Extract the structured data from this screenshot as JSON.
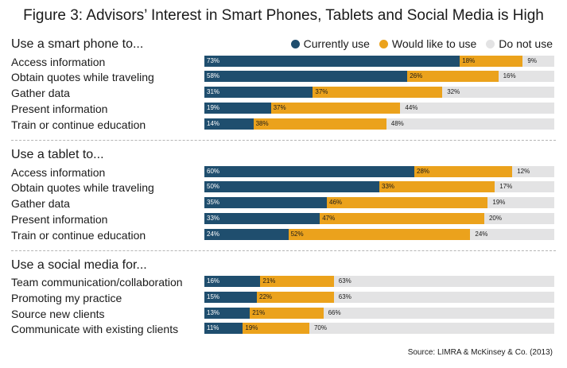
{
  "title": "Figure 3: Advisors’ Interest in Smart Phones, Tablets and Social Media is High",
  "legend": [
    {
      "label": "Currently use",
      "color": "#1f4e6e"
    },
    {
      "label": "Would like to use",
      "color": "#eba21c"
    },
    {
      "label": "Do not use",
      "color": "#e3e3e4"
    }
  ],
  "source": "Source: LIMRA & McKinsey & Co. (2013)",
  "chart_data": {
    "type": "bar",
    "orientation": "horizontal",
    "stacked": true,
    "units": "percent",
    "xlim": [
      0,
      100
    ],
    "series": [
      "Currently use",
      "Would like to use",
      "Do not use"
    ],
    "groups": [
      {
        "title": "Use a smart phone to...",
        "rows": [
          {
            "label": "Access information",
            "values": [
              73,
              18,
              9
            ]
          },
          {
            "label": "Obtain quotes while traveling",
            "values": [
              58,
              26,
              16
            ]
          },
          {
            "label": "Gather data",
            "values": [
              31,
              37,
              32
            ]
          },
          {
            "label": "Present information",
            "values": [
              19,
              37,
              44
            ]
          },
          {
            "label": "Train or continue education",
            "values": [
              14,
              38,
              48
            ]
          }
        ]
      },
      {
        "title": "Use a tablet to...",
        "rows": [
          {
            "label": "Access information",
            "values": [
              60,
              28,
              12
            ]
          },
          {
            "label": "Obtain quotes while traveling",
            "values": [
              50,
              33,
              17
            ]
          },
          {
            "label": "Gather data",
            "values": [
              35,
              46,
              19
            ]
          },
          {
            "label": "Present information",
            "values": [
              33,
              47,
              20
            ]
          },
          {
            "label": "Train or continue education",
            "values": [
              24,
              52,
              24
            ]
          }
        ]
      },
      {
        "title": "Use a social media for...",
        "rows": [
          {
            "label": "Team communication/collaboration",
            "values": [
              16,
              21,
              63
            ]
          },
          {
            "label": "Promoting my practice",
            "values": [
              15,
              22,
              63
            ]
          },
          {
            "label": "Source new clients",
            "values": [
              13,
              21,
              66
            ]
          },
          {
            "label": "Communicate with existing clients",
            "values": [
              11,
              19,
              70
            ]
          }
        ]
      }
    ]
  }
}
